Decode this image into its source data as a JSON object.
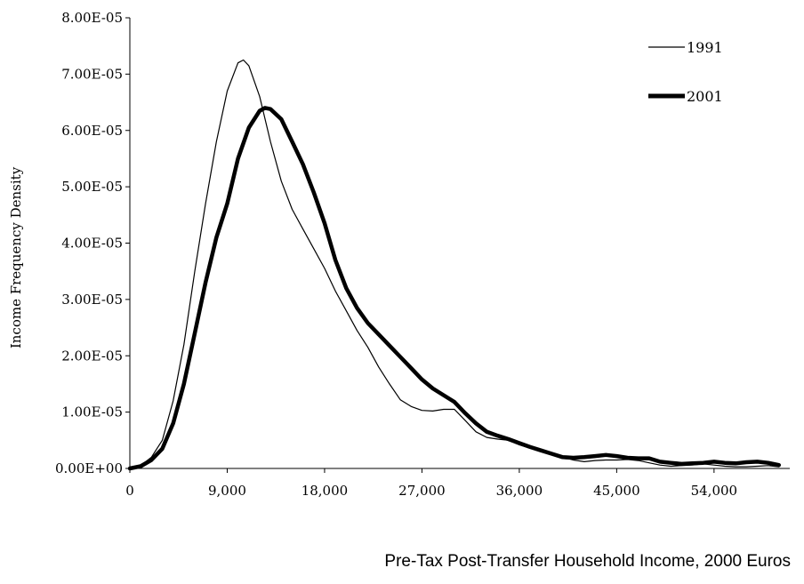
{
  "chart_data": {
    "type": "line",
    "title": "",
    "xlabel": "Pre-Tax Post-Transfer Household Income, 2000 Euros",
    "ylabel": "Income Frequency Density",
    "xlim": [
      0,
      61000
    ],
    "ylim": [
      0,
      8e-05
    ],
    "x_ticks": [
      0,
      9000,
      18000,
      27000,
      36000,
      45000,
      54000
    ],
    "x_tick_labels": [
      "0",
      "9,000",
      "18,000",
      "27,000",
      "36,000",
      "45,000",
      "54,000"
    ],
    "y_ticks": [
      0,
      1e-05,
      2e-05,
      3e-05,
      4e-05,
      5e-05,
      6e-05,
      7e-05,
      8e-05
    ],
    "y_tick_labels": [
      "0.00E+00",
      "1.00E-05",
      "2.00E-05",
      "3.00E-05",
      "4.00E-05",
      "5.00E-05",
      "6.00E-05",
      "7.00E-05",
      "8.00E-05"
    ],
    "grid": false,
    "legend_position": "top-right",
    "series": [
      {
        "name": "1991",
        "color": "#000000",
        "style": "thin",
        "points": [
          [
            0,
            0
          ],
          [
            1000,
            5e-07
          ],
          [
            2000,
            2e-06
          ],
          [
            3000,
            5e-06
          ],
          [
            4000,
            1.2e-05
          ],
          [
            5000,
            2.2e-05
          ],
          [
            6000,
            3.5e-05
          ],
          [
            7000,
            4.7e-05
          ],
          [
            8000,
            5.8e-05
          ],
          [
            9000,
            6.7e-05
          ],
          [
            10000,
            7.2e-05
          ],
          [
            10500,
            7.25e-05
          ],
          [
            11000,
            7.15e-05
          ],
          [
            12000,
            6.6e-05
          ],
          [
            13000,
            5.8e-05
          ],
          [
            14000,
            5.1e-05
          ],
          [
            15000,
            4.6e-05
          ],
          [
            16000,
            4.25e-05
          ],
          [
            17000,
            3.9e-05
          ],
          [
            18000,
            3.55e-05
          ],
          [
            19000,
            3.15e-05
          ],
          [
            20000,
            2.8e-05
          ],
          [
            21000,
            2.45e-05
          ],
          [
            22000,
            2.15e-05
          ],
          [
            23000,
            1.8e-05
          ],
          [
            24000,
            1.5e-05
          ],
          [
            25000,
            1.22e-05
          ],
          [
            26000,
            1.1e-05
          ],
          [
            27000,
            1.03e-05
          ],
          [
            28000,
            1.02e-05
          ],
          [
            29000,
            1.05e-05
          ],
          [
            30000,
            1.05e-05
          ],
          [
            31000,
            8.5e-06
          ],
          [
            32000,
            6.5e-06
          ],
          [
            33000,
            5.5e-06
          ],
          [
            34000,
            5.2e-06
          ],
          [
            35000,
            5e-06
          ],
          [
            36000,
            4.2e-06
          ],
          [
            38000,
            3e-06
          ],
          [
            40000,
            2e-06
          ],
          [
            41000,
            1.5e-06
          ],
          [
            42000,
            1.2e-06
          ],
          [
            43000,
            1.4e-06
          ],
          [
            44000,
            1.5e-06
          ],
          [
            45000,
            1.5e-06
          ],
          [
            46000,
            1.6e-06
          ],
          [
            47000,
            1.4e-06
          ],
          [
            48000,
            1e-06
          ],
          [
            49000,
            6e-07
          ],
          [
            50000,
            4e-07
          ],
          [
            51000,
            5e-07
          ],
          [
            52000,
            6e-07
          ],
          [
            53000,
            8e-07
          ],
          [
            54000,
            6e-07
          ],
          [
            55000,
            4e-07
          ],
          [
            56000,
            3e-07
          ],
          [
            57000,
            3e-07
          ],
          [
            58000,
            4e-07
          ],
          [
            59000,
            5e-07
          ],
          [
            60000,
            3e-07
          ]
        ]
      },
      {
        "name": "2001",
        "color": "#000000",
        "style": "thick",
        "points": [
          [
            0,
            0
          ],
          [
            1000,
            4e-07
          ],
          [
            2000,
            1.5e-06
          ],
          [
            3000,
            3.5e-06
          ],
          [
            4000,
            8e-06
          ],
          [
            5000,
            1.5e-05
          ],
          [
            6000,
            2.4e-05
          ],
          [
            7000,
            3.3e-05
          ],
          [
            8000,
            4.1e-05
          ],
          [
            9000,
            4.7e-05
          ],
          [
            10000,
            5.5e-05
          ],
          [
            11000,
            6.05e-05
          ],
          [
            12000,
            6.35e-05
          ],
          [
            12500,
            6.4e-05
          ],
          [
            13000,
            6.38e-05
          ],
          [
            14000,
            6.2e-05
          ],
          [
            15000,
            5.8e-05
          ],
          [
            16000,
            5.4e-05
          ],
          [
            17000,
            4.9e-05
          ],
          [
            18000,
            4.35e-05
          ],
          [
            19000,
            3.7e-05
          ],
          [
            20000,
            3.2e-05
          ],
          [
            21000,
            2.85e-05
          ],
          [
            22000,
            2.58e-05
          ],
          [
            23000,
            2.38e-05
          ],
          [
            24000,
            2.18e-05
          ],
          [
            25000,
            1.98e-05
          ],
          [
            26000,
            1.78e-05
          ],
          [
            27000,
            1.58e-05
          ],
          [
            28000,
            1.42e-05
          ],
          [
            29000,
            1.3e-05
          ],
          [
            30000,
            1.18e-05
          ],
          [
            31000,
            9.8e-06
          ],
          [
            32000,
            8e-06
          ],
          [
            33000,
            6.5e-06
          ],
          [
            34000,
            5.8e-06
          ],
          [
            35000,
            5.2e-06
          ],
          [
            36000,
            4.5e-06
          ],
          [
            37000,
            3.8e-06
          ],
          [
            38000,
            3.2e-06
          ],
          [
            39000,
            2.6e-06
          ],
          [
            40000,
            2e-06
          ],
          [
            41000,
            1.9e-06
          ],
          [
            42000,
            2e-06
          ],
          [
            43000,
            2.2e-06
          ],
          [
            44000,
            2.4e-06
          ],
          [
            45000,
            2.2e-06
          ],
          [
            46000,
            1.9e-06
          ],
          [
            47000,
            1.8e-06
          ],
          [
            48000,
            1.8e-06
          ],
          [
            49000,
            1.2e-06
          ],
          [
            50000,
            1e-06
          ],
          [
            51000,
            8e-07
          ],
          [
            52000,
            9e-07
          ],
          [
            53000,
            1e-06
          ],
          [
            54000,
            1.2e-06
          ],
          [
            55000,
            1e-06
          ],
          [
            56000,
            9e-07
          ],
          [
            57000,
            1.1e-06
          ],
          [
            58000,
            1.2e-06
          ],
          [
            59000,
            1e-06
          ],
          [
            60000,
            6e-07
          ]
        ]
      }
    ]
  }
}
